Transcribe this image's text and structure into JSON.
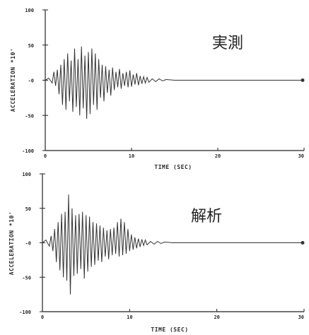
{
  "chart_data": [
    {
      "type": "line",
      "title": "実測",
      "xlabel": "TIME (SEC)",
      "ylabel": "ACCELERATION  *10'",
      "xlim": [
        0,
        30
      ],
      "ylim": [
        -100,
        100
      ],
      "x_ticks": [
        0,
        10,
        20,
        30
      ],
      "x_tick_labels": [
        "0",
        "10",
        "20",
        "30"
      ],
      "y_ticks": [
        100,
        50,
        0,
        -50,
        -100
      ],
      "y_tick_labels": [
        "100",
        "50",
        "-0",
        "-50",
        "-100"
      ],
      "grid": false,
      "series": [
        {
          "x": [
            0,
            0.4,
            0.8,
            1.0,
            1.2,
            1.4,
            1.6,
            1.8,
            2.0,
            2.2,
            2.4,
            2.6,
            2.8,
            3.0,
            3.2,
            3.4,
            3.6,
            3.8,
            4.0,
            4.2,
            4.4,
            4.6,
            4.8,
            5.0,
            5.2,
            5.4,
            5.6,
            5.8,
            6.0,
            6.2,
            6.4,
            6.6,
            6.8,
            7.0,
            7.2,
            7.4,
            7.6,
            7.8,
            8.0,
            8.2,
            8.4,
            8.6,
            8.8,
            9.0,
            9.2,
            9.4,
            9.6,
            9.8,
            10.0,
            10.2,
            10.4,
            10.6,
            10.8,
            11.0,
            11.2,
            11.4,
            11.6,
            11.8,
            12.0,
            12.4,
            12.8,
            13.2,
            13.6,
            14.0,
            15.0,
            17.0,
            20.0,
            25.0,
            30.0
          ],
          "y": [
            0,
            3,
            -4,
            12,
            -8,
            15,
            -20,
            22,
            -35,
            30,
            -42,
            38,
            -30,
            28,
            -45,
            45,
            -38,
            30,
            -50,
            48,
            -40,
            35,
            -55,
            40,
            -48,
            45,
            -35,
            38,
            -42,
            30,
            -25,
            22,
            -30,
            20,
            -18,
            15,
            -22,
            18,
            -14,
            12,
            -10,
            16,
            -12,
            10,
            -8,
            12,
            -10,
            14,
            -9,
            8,
            -6,
            10,
            -7,
            6,
            -5,
            5,
            -4,
            4,
            -3,
            2,
            -2,
            2,
            -1,
            1,
            0,
            0,
            0,
            0,
            0
          ]
        }
      ]
    },
    {
      "type": "line",
      "title": "解析",
      "xlabel": "TIME (SEC)",
      "ylabel": "ACCELERATION  *10'",
      "xlim": [
        0,
        30
      ],
      "ylim": [
        -100,
        100
      ],
      "x_ticks": [
        0,
        10,
        20,
        30
      ],
      "x_tick_labels": [
        "0",
        "10",
        "20",
        "30"
      ],
      "y_ticks": [
        100,
        50,
        0,
        -50,
        -100
      ],
      "y_tick_labels": [
        "100",
        "50",
        "-0",
        "-50",
        "-100"
      ],
      "grid": false,
      "series": [
        {
          "x": [
            0,
            0.4,
            0.8,
            1.0,
            1.2,
            1.4,
            1.6,
            1.8,
            2.0,
            2.2,
            2.4,
            2.6,
            2.8,
            3.0,
            3.2,
            3.4,
            3.6,
            3.8,
            4.0,
            4.2,
            4.4,
            4.6,
            4.8,
            5.0,
            5.2,
            5.4,
            5.6,
            5.8,
            6.0,
            6.2,
            6.4,
            6.6,
            6.8,
            7.0,
            7.2,
            7.4,
            7.6,
            7.8,
            8.0,
            8.2,
            8.4,
            8.6,
            8.8,
            9.0,
            9.2,
            9.4,
            9.6,
            9.8,
            10.0,
            10.2,
            10.4,
            10.6,
            10.8,
            11.0,
            11.2,
            11.4,
            11.6,
            11.8,
            12.0,
            12.4,
            12.8,
            13.2,
            13.6,
            14.0,
            15.0,
            17.0,
            20.0,
            25.0,
            30.0
          ],
          "y": [
            0,
            4,
            -5,
            10,
            -12,
            20,
            -28,
            30,
            -40,
            42,
            -50,
            45,
            -55,
            70,
            -75,
            50,
            -48,
            40,
            -45,
            42,
            -38,
            45,
            -52,
            40,
            -42,
            38,
            -35,
            30,
            -32,
            28,
            -26,
            25,
            -28,
            22,
            -20,
            18,
            -24,
            20,
            -18,
            22,
            -16,
            30,
            -20,
            35,
            -18,
            30,
            -16,
            20,
            -12,
            12,
            -10,
            8,
            -8,
            6,
            -6,
            5,
            -4,
            4,
            -3,
            2,
            -2,
            2,
            -1,
            1,
            0,
            0,
            0,
            0,
            0
          ]
        }
      ]
    }
  ]
}
